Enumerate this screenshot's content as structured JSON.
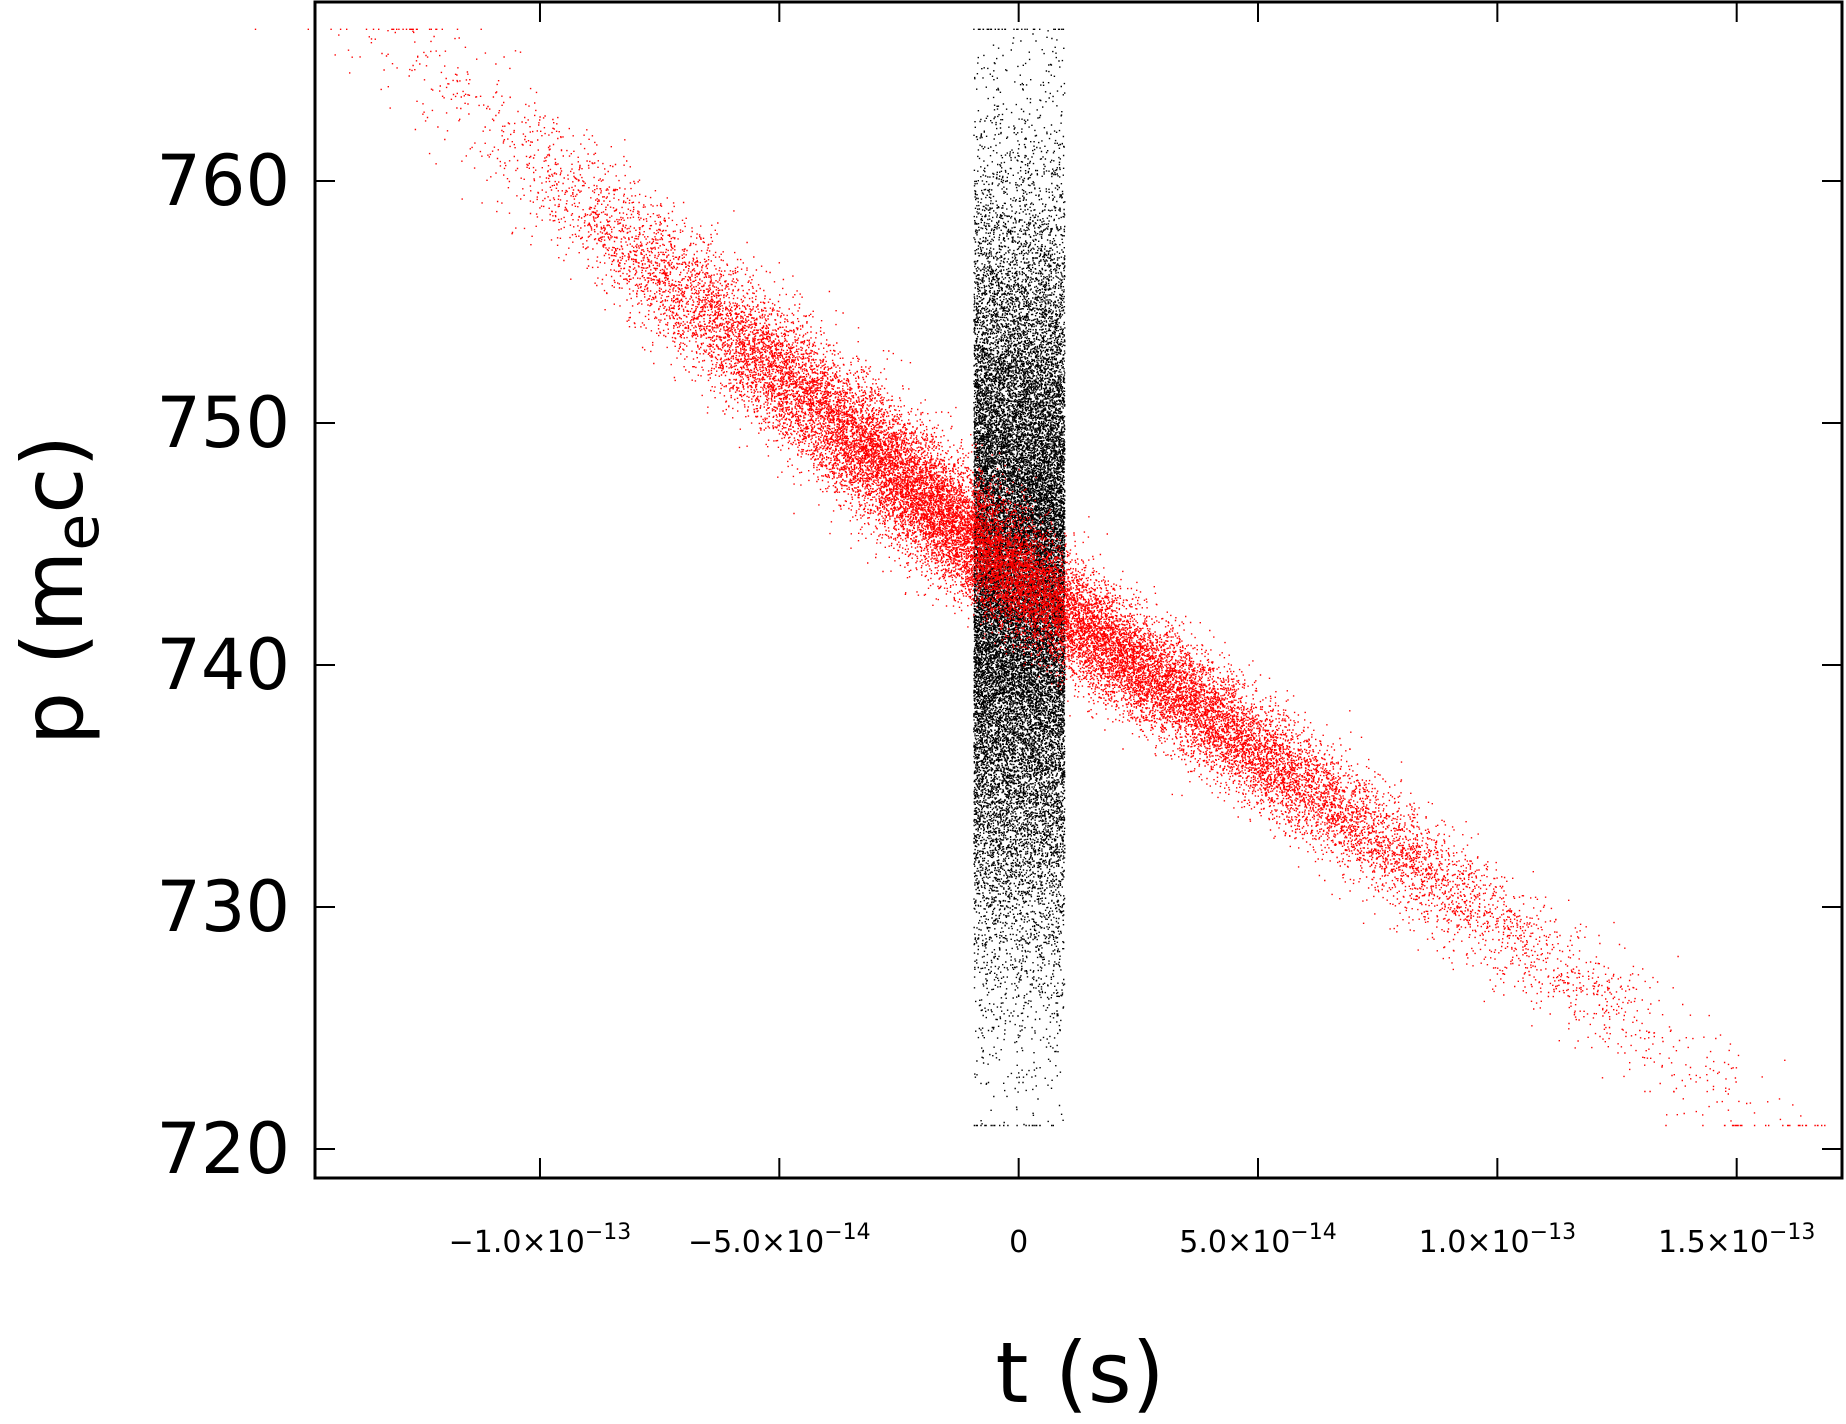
{
  "chart_data": {
    "type": "scatter",
    "xlabel": "t (s)",
    "ylabel": {
      "main": "p (m",
      "sub": "e",
      "tail": "c)"
    },
    "xlim": [
      -1.47e-13,
      1.72e-13
    ],
    "ylim": [
      718.8,
      767.4
    ],
    "xticks": [
      {
        "value": -1e-13,
        "mant": "−1.0×10",
        "exp": "−13"
      },
      {
        "value": -5e-14,
        "mant": "−5.0×10",
        "exp": "−14"
      },
      {
        "value": 0,
        "mant": "0",
        "exp": ""
      },
      {
        "value": 5e-14,
        "mant": "5.0×10",
        "exp": "−14"
      },
      {
        "value": 1e-13,
        "mant": "1.0×10",
        "exp": "−13"
      },
      {
        "value": 1.5e-13,
        "mant": "1.5×10",
        "exp": "−13"
      }
    ],
    "yticks": [
      720,
      730,
      740,
      750,
      760
    ],
    "grid": false,
    "legend": "none",
    "series": [
      {
        "color": "#000000",
        "distribution": {
          "x_center": 0,
          "x_halfwidth": 9.5e-15,
          "y_center": 744,
          "y_min": 721.0,
          "y_max": 766.3,
          "points": 26000
        }
      },
      {
        "color": "#ff0000",
        "distribution": {
          "line_start": {
            "x": -1.3e-13,
            "y": 766.3
          },
          "line_mid": {
            "x": 0,
            "y": 743.5
          },
          "line_end": {
            "x": 1.55e-13,
            "y": 721.0
          },
          "p_spread": 1.3,
          "points": 26000
        }
      }
    ]
  }
}
